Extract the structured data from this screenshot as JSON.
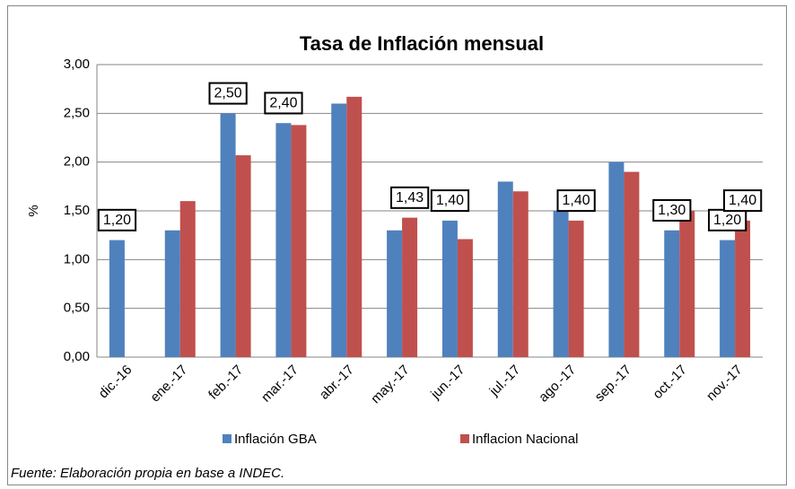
{
  "chart_data": {
    "type": "bar",
    "title": "Tasa de Inflación mensual",
    "y_label": "%",
    "categories": [
      "dic.-16",
      "ene.-17",
      "feb.-17",
      "mar.-17",
      "abr.-17",
      "may.-17",
      "jun.-17",
      "jul.-17",
      "ago.-17",
      "sep.-17",
      "oct.-17",
      "nov.-17"
    ],
    "series": [
      {
        "name": "Inflación GBA",
        "color": "#4f81bd",
        "values": [
          1.2,
          1.3,
          2.5,
          2.4,
          2.6,
          1.3,
          1.4,
          1.8,
          1.5,
          2.0,
          1.3,
          1.2
        ],
        "value_labels": [
          "1,20",
          null,
          "2,50",
          "2,40",
          null,
          null,
          "1,40",
          null,
          null,
          null,
          "1,30",
          "1,20"
        ]
      },
      {
        "name": "Inflacion Nacional",
        "color": "#c0504d",
        "values": [
          null,
          1.6,
          2.07,
          2.38,
          2.67,
          1.43,
          1.21,
          1.7,
          1.4,
          1.9,
          1.5,
          1.4
        ],
        "value_labels": [
          null,
          null,
          null,
          null,
          null,
          "1,43",
          null,
          null,
          "1,40",
          null,
          null,
          "1,40"
        ]
      }
    ],
    "ylim": [
      0,
      3
    ],
    "yticks": [
      {
        "value": 0,
        "label": "0,00"
      },
      {
        "value": 0.5,
        "label": "0,50"
      },
      {
        "value": 1,
        "label": "1,00"
      },
      {
        "value": 1.5,
        "label": "1,50"
      },
      {
        "value": 2,
        "label": "2,00"
      },
      {
        "value": 2.5,
        "label": "2,50"
      },
      {
        "value": 3,
        "label": "3,00"
      }
    ],
    "grid": true,
    "legend": "bottom",
    "source": "Fuente: Elaboración propia en base a INDEC."
  }
}
